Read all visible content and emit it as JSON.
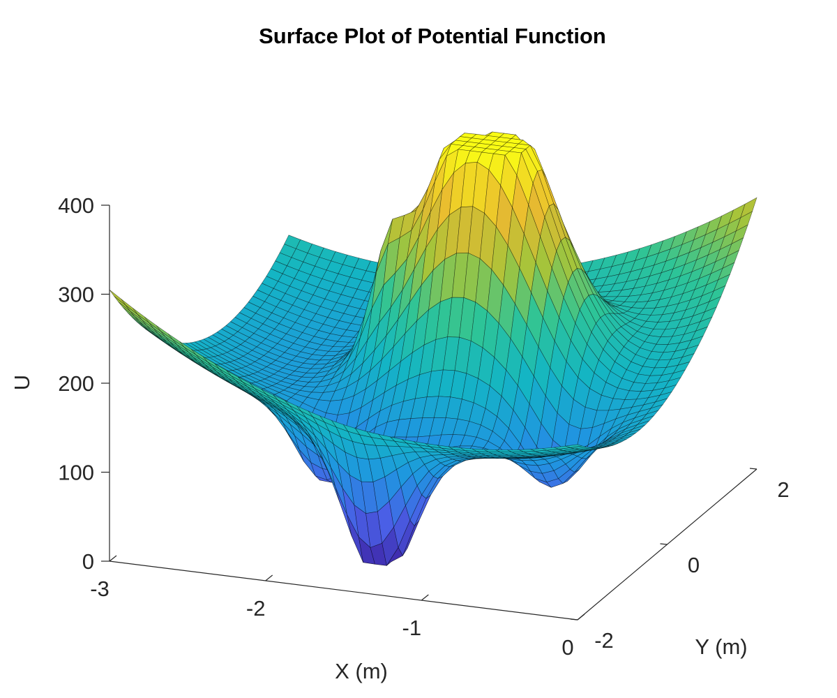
{
  "chart_data": {
    "type": "surface",
    "title": "Surface Plot of Potential Function",
    "xlabel": "X (m)",
    "ylabel": "Y (m)",
    "zlabel": "U",
    "xlim": [
      -3,
      0
    ],
    "ylim": [
      -2,
      2
    ],
    "zlim": [
      0,
      400
    ],
    "x_ticks": [
      "-3",
      "-2",
      "-1",
      "0"
    ],
    "y_ticks": [
      "-2",
      "0",
      "2"
    ],
    "z_ticks": [
      "0",
      "100",
      "200",
      "300",
      "400"
    ],
    "z_clip_max": 400,
    "colormap": "parula",
    "colors": [
      "#3e26a8",
      "#4a5fe6",
      "#1f96e0",
      "#14b5c4",
      "#2ec497",
      "#a6c43a",
      "#e9b931",
      "#f9fb15"
    ],
    "features": [
      {
        "label": "central plateau",
        "x": -1.3,
        "y": 0.5,
        "z": 400
      },
      {
        "label": "deep well",
        "x": -1.5,
        "y": -1.2,
        "z": 8
      }
    ]
  }
}
